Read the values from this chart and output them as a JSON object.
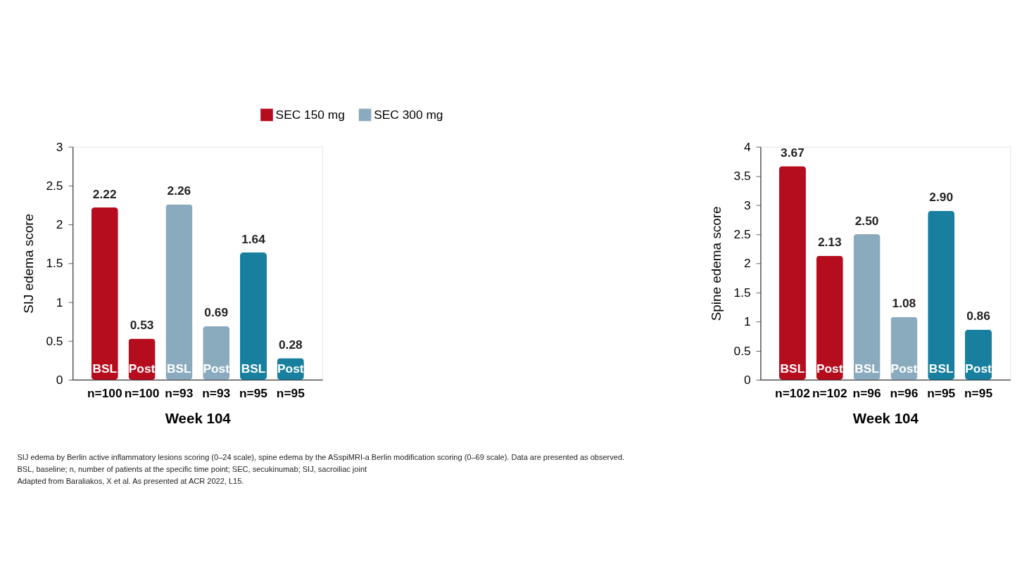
{
  "chart_data": [
    {
      "type": "bar",
      "ylabel": "SIJ edema score",
      "xlabel": "Week 104",
      "categories": [
        "n=100",
        "n=100",
        "n=93",
        "n=93",
        "n=95",
        "n=95"
      ],
      "series": [
        {
          "name": "SEC 150 mg",
          "color": "#b50d1e",
          "values": [
            2.22,
            0.53,
            null,
            null,
            null,
            null
          ]
        },
        {
          "name": "SEC 300 mg",
          "color": "#8aabbd",
          "values": [
            null,
            null,
            2.26,
            0.69,
            null,
            null
          ]
        },
        {
          "color": "#18809e",
          "values": [
            null,
            null,
            null,
            null,
            1.64,
            0.28
          ]
        }
      ],
      "ylim": [
        0,
        3
      ],
      "yticks": [
        0,
        0.5,
        1,
        1.5,
        2,
        2.5,
        3
      ],
      "grid": false,
      "legend": "top",
      "data_labels": true,
      "annotations": [
        {
          "text": "BSL",
          "x": "n=100",
          "y": 0
        },
        {
          "text": "Post",
          "x": "n=100",
          "y": 0
        },
        {
          "text": "BSL",
          "x": "n=93",
          "y": 0
        },
        {
          "text": "Post",
          "x": "n=93",
          "y": 0
        },
        {
          "text": "BSL",
          "x": "n=95",
          "y": 0
        },
        {
          "text": "Post",
          "x": "n=95",
          "y": 0
        },
        "SIJ edema by Berlin active inflammatory lesions scoring (0–24 scale), spine edema by the ASspiMRI-a Berlin modification scoring (0–69 scale). Data are presented as observed.",
        "BSL, baseline; n, number of patients at the specific time point; SEC, secukinumab; SIJ, sacroiliac joint",
        "Adapted from Baraliakos, X et al. As presented at ACR 2022, L15."
      ]
    },
    {
      "type": "bar",
      "ylabel": "Spine edema score",
      "xlabel": "Week 104",
      "categories": [
        "n=102",
        "n=102",
        "n=96",
        "n=96",
        "n=95",
        "n=95"
      ],
      "series": [
        {
          "color": "#b50d1e",
          "values": [
            3.67,
            2.13,
            null,
            null,
            null,
            null
          ],
          "value_labels": [
            "3.67",
            "2.13",
            null,
            null,
            null,
            null
          ]
        },
        {
          "color": "#8aabbd",
          "values": [
            null,
            null,
            2.5,
            1.08,
            null,
            null
          ],
          "value_labels": [
            null,
            null,
            "2.50",
            "1.08",
            null,
            null
          ]
        },
        {
          "color": "#18809e",
          "values": [
            null,
            null,
            null,
            null,
            2.9,
            0.86
          ],
          "value_labels": [
            null,
            null,
            null,
            null,
            "2.90",
            "0.86"
          ]
        }
      ],
      "ylim": [
        0,
        4
      ],
      "yticks": [
        0,
        0.5,
        1,
        1.5,
        2,
        2.5,
        3,
        3.5,
        4
      ],
      "grid": false,
      "annotations": [
        {
          "text": "BSL",
          "x": "n=102",
          "y": 0
        },
        {
          "text": "Post",
          "x": "n=102",
          "y": 0
        },
        {
          "text": "BSL",
          "x": "n=96",
          "y": 0
        },
        {
          "text": "Post",
          "x": "n=96",
          "y": 0
        },
        {
          "text": "BSL",
          "x": "n=95",
          "y": 0
        },
        {
          "text": "Post",
          "x": "n=95",
          "y": 0
        }
      ]
    }
  ]
}
